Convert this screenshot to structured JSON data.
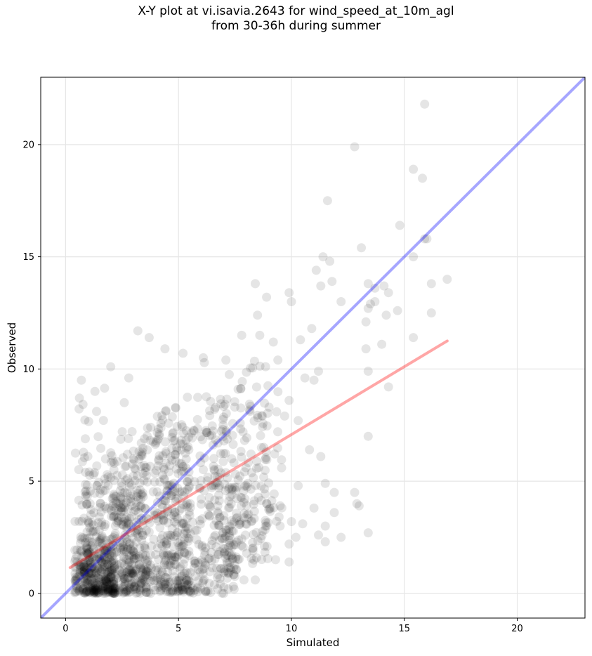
{
  "figure": {
    "title": "X-Y plot at vi.isavia.2643 for wind_speed_at_10m_agl\nfrom 30-36h during summer"
  },
  "chart_data": {
    "type": "scatter",
    "title": "X-Y plot at vi.isavia.2643 for wind_speed_at_10m_agl\nfrom 30-36h during summer",
    "xlabel": "Simulated",
    "ylabel": "Observed",
    "xlim": [
      -1.1,
      23
    ],
    "ylim": [
      -1.1,
      23
    ],
    "xticks": [
      0,
      5,
      10,
      15,
      20
    ],
    "yticks": [
      0,
      5,
      10,
      15,
      20
    ],
    "grid": true,
    "colors": {
      "points": "#000000",
      "identity_line": "#0000ff",
      "fit_line": "#ff0000",
      "grid": "#e6e6e6"
    },
    "identity_line": {
      "x": [
        -1.1,
        23
      ],
      "y": [
        -1.1,
        23
      ]
    },
    "fit_line": {
      "x": [
        0.2,
        16.9
      ],
      "y": [
        1.15,
        11.25
      ]
    },
    "point_cloud_note_free": true,
    "outlier_points": [
      [
        15.9,
        21.8
      ],
      [
        12.8,
        19.9
      ],
      [
        15.4,
        18.9
      ],
      [
        15.8,
        18.5
      ],
      [
        11.6,
        17.5
      ],
      [
        14.8,
        16.4
      ],
      [
        15.9,
        15.8
      ],
      [
        16.0,
        15.8
      ],
      [
        13.1,
        15.4
      ],
      [
        11.4,
        15.0
      ],
      [
        15.4,
        15.0
      ],
      [
        11.7,
        14.8
      ],
      [
        11.1,
        14.4
      ],
      [
        8.4,
        13.8
      ],
      [
        13.4,
        13.8
      ],
      [
        16.2,
        13.8
      ],
      [
        16.9,
        14.0
      ],
      [
        11.8,
        13.9
      ],
      [
        11.3,
        13.7
      ],
      [
        13.7,
        13.6
      ],
      [
        14.1,
        13.7
      ],
      [
        9.9,
        13.4
      ],
      [
        14.3,
        13.4
      ],
      [
        8.9,
        13.2
      ],
      [
        10.0,
        13.0
      ],
      [
        12.2,
        13.0
      ],
      [
        13.5,
        12.9
      ],
      [
        13.7,
        13.0
      ],
      [
        13.4,
        12.7
      ],
      [
        14.7,
        12.6
      ],
      [
        16.2,
        12.5
      ],
      [
        8.5,
        12.4
      ],
      [
        14.2,
        12.4
      ],
      [
        13.3,
        12.1
      ],
      [
        10.9,
        11.8
      ],
      [
        3.2,
        11.7
      ],
      [
        7.8,
        11.5
      ],
      [
        8.6,
        11.5
      ],
      [
        15.4,
        11.4
      ],
      [
        3.7,
        11.4
      ],
      [
        10.4,
        11.3
      ],
      [
        9.2,
        11.2
      ],
      [
        14.0,
        11.1
      ],
      [
        4.4,
        10.9
      ],
      [
        13.3,
        10.9
      ],
      [
        5.2,
        10.7
      ],
      [
        6.1,
        10.5
      ],
      [
        9.4,
        10.4
      ],
      [
        7.1,
        10.4
      ],
      [
        13.4,
        9.9
      ],
      [
        11.2,
        9.9
      ],
      [
        2.0,
        10.1
      ],
      [
        2.8,
        9.6
      ],
      [
        10.6,
        9.6
      ],
      [
        0.7,
        9.5
      ],
      [
        11.0,
        9.5
      ],
      [
        14.3,
        9.2
      ],
      [
        1.3,
        9.0
      ],
      [
        2.6,
        8.5
      ],
      [
        9.9,
        8.6
      ],
      [
        10.3,
        7.7
      ],
      [
        13.4,
        7.0
      ],
      [
        9.7,
        7.9
      ],
      [
        11.3,
        6.1
      ],
      [
        10.8,
        6.4
      ],
      [
        11.5,
        4.9
      ],
      [
        11.9,
        4.5
      ],
      [
        12.8,
        4.5
      ],
      [
        10.3,
        4.8
      ],
      [
        11.0,
        3.8
      ],
      [
        12.9,
        4.0
      ],
      [
        13.0,
        3.9
      ],
      [
        11.9,
        3.6
      ],
      [
        10.5,
        3.1
      ],
      [
        11.5,
        3.0
      ],
      [
        10.0,
        3.2
      ],
      [
        9.5,
        3.0
      ],
      [
        9.9,
        2.2
      ],
      [
        10.2,
        2.5
      ],
      [
        12.2,
        2.5
      ],
      [
        13.4,
        2.7
      ],
      [
        11.2,
        2.6
      ],
      [
        11.5,
        2.3
      ],
      [
        9.3,
        1.5
      ],
      [
        9.9,
        1.4
      ],
      [
        8.3,
        1.9
      ],
      [
        7.9,
        0.6
      ],
      [
        8.4,
        0.6
      ],
      [
        7.2,
        0.2
      ],
      [
        7.0,
        0.0
      ],
      [
        6.3,
        0.1
      ],
      [
        6.2,
        0.1
      ]
    ],
    "cluster_regions": [
      {
        "x": [
          0.4,
          2.2
        ],
        "y": [
          0.0,
          2.6
        ],
        "count": 260
      },
      {
        "x": [
          0.8,
          3.6
        ],
        "y": [
          0.0,
          6.0
        ],
        "count": 320
      },
      {
        "x": [
          2.0,
          5.5
        ],
        "y": [
          0.0,
          7.5
        ],
        "count": 360
      },
      {
        "x": [
          4.0,
          7.5
        ],
        "y": [
          0.0,
          8.8
        ],
        "count": 300
      },
      {
        "x": [
          6.0,
          9.0
        ],
        "y": [
          1.0,
          10.4
        ],
        "count": 200
      },
      {
        "x": [
          0.4,
          1.8
        ],
        "y": [
          3.0,
          9.2
        ],
        "count": 40
      },
      {
        "x": [
          7.5,
          9.6
        ],
        "y": [
          3.0,
          9.4
        ],
        "count": 60
      }
    ]
  }
}
